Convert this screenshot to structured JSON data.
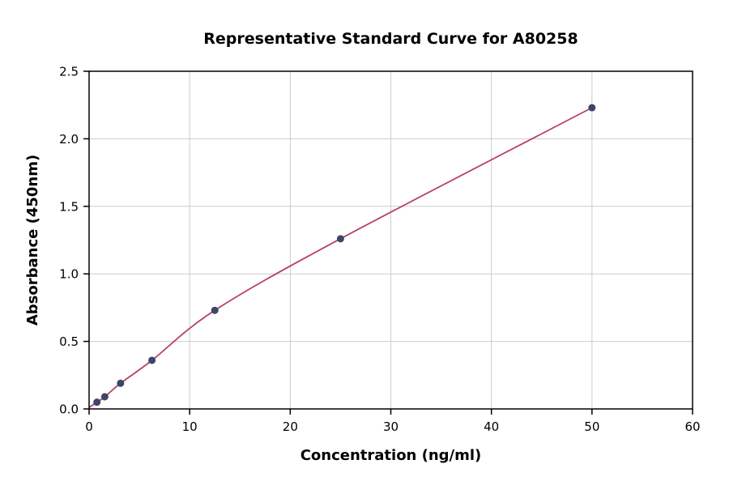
{
  "chart_data": {
    "type": "scatter",
    "title": "Representative Standard Curve for A80258",
    "xlabel": "Concentration (ng/ml)",
    "ylabel": "Absorbance (450nm)",
    "xlim": [
      0,
      60
    ],
    "ylim": [
      0,
      2.5
    ],
    "xticks": [
      0,
      10,
      20,
      30,
      40,
      50,
      60
    ],
    "xtick_labels": [
      "0",
      "10",
      "20",
      "30",
      "40",
      "50",
      "60"
    ],
    "yticks": [
      0,
      0.5,
      1.0,
      1.5,
      2.0,
      2.5
    ],
    "ytick_labels": [
      "0.0",
      "0.5",
      "1.0",
      "1.5",
      "2.0",
      "2.5"
    ],
    "grid": true,
    "legend_position": "none",
    "series": [
      {
        "name": "standard-points",
        "type": "scatter",
        "color": "#3b4668",
        "points": [
          [
            0.78,
            0.05
          ],
          [
            1.56,
            0.09
          ],
          [
            3.125,
            0.19
          ],
          [
            6.25,
            0.36
          ],
          [
            12.5,
            0.73
          ],
          [
            25,
            1.26
          ],
          [
            50,
            2.23
          ]
        ]
      },
      {
        "name": "fit-curve",
        "type": "line",
        "color": "#b84062",
        "points": [
          [
            0,
            0.01
          ],
          [
            0.78,
            0.05
          ],
          [
            1.56,
            0.09
          ],
          [
            3.125,
            0.19
          ],
          [
            6.25,
            0.36
          ],
          [
            12.5,
            0.73
          ],
          [
            25,
            1.26
          ],
          [
            50,
            2.23
          ]
        ]
      }
    ],
    "colors": {
      "grid": "#cccccc",
      "axis": "#000000",
      "background": "#ffffff",
      "text": "#000000"
    }
  }
}
